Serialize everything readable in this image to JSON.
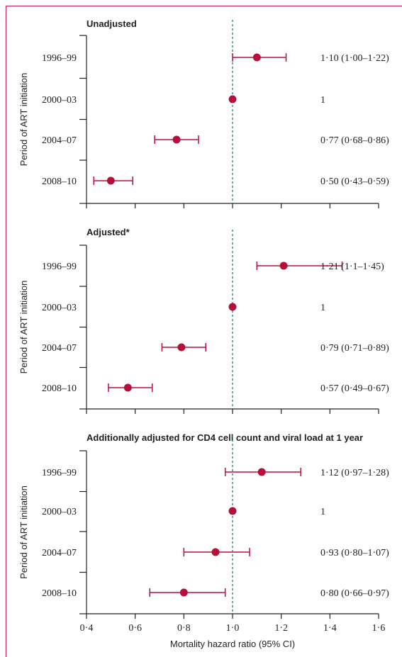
{
  "colors": {
    "point": "#b5103c",
    "ci_line": "#b5103c",
    "reference_line": "#2a7a7a",
    "axis": "#222222",
    "frame": "#c2185b"
  },
  "xlabel": "Mortality hazard ratio (95% CI)",
  "ylabel": "Period of ART initiation",
  "x_tick_labels": [
    "0·4",
    "0·6",
    "0·8",
    "1·0",
    "1·2",
    "1·4",
    "1·6"
  ],
  "chart_data": [
    {
      "type": "scatter",
      "title": "Unadjusted",
      "xlabel": "",
      "ylabel": "Period of ART initiation",
      "xlim": [
        0.4,
        1.6
      ],
      "reference_x": 1.0,
      "categories": [
        "1996–99",
        "2000–03",
        "2004–07",
        "2008–10"
      ],
      "values": [
        1.1,
        1.0,
        0.77,
        0.5
      ],
      "ci_low": [
        1.0,
        null,
        0.68,
        0.43
      ],
      "ci_high": [
        1.22,
        null,
        0.86,
        0.59
      ],
      "labels": [
        "1·10 (1·00–1·22)",
        "1",
        "0·77 (0·68–0·86)",
        "0·50 (0·43–0·59)"
      ]
    },
    {
      "type": "scatter",
      "title": "Adjusted*",
      "xlabel": "",
      "ylabel": "Period of ART initiation",
      "xlim": [
        0.4,
        1.6
      ],
      "reference_x": 1.0,
      "categories": [
        "1996–99",
        "2000–03",
        "2004–07",
        "2008–10"
      ],
      "values": [
        1.21,
        1.0,
        0.79,
        0.57
      ],
      "ci_low": [
        1.1,
        null,
        0.71,
        0.49
      ],
      "ci_high": [
        1.45,
        null,
        0.89,
        0.67
      ],
      "labels": [
        "1·21 (1·1–1·45)",
        "1",
        "0·79 (0·71–0·89)",
        "0·57 (0·49–0·67)"
      ]
    },
    {
      "type": "scatter",
      "title": "Additionally adjusted for CD4 cell count and viral load at 1 year",
      "xlabel": "Mortality hazard ratio (95% CI)",
      "ylabel": "Period of ART initiation",
      "xlim": [
        0.4,
        1.6
      ],
      "reference_x": 1.0,
      "categories": [
        "1996–99",
        "2000–03",
        "2004–07",
        "2008–10"
      ],
      "values": [
        1.12,
        1.0,
        0.93,
        0.8
      ],
      "ci_low": [
        0.97,
        null,
        0.8,
        0.66
      ],
      "ci_high": [
        1.28,
        null,
        1.07,
        0.97
      ],
      "labels": [
        "1·12 (0·97–1·28)",
        "1",
        "0·93 (0·80–1·07)",
        "0·80 (0·66–0·97)"
      ]
    }
  ]
}
